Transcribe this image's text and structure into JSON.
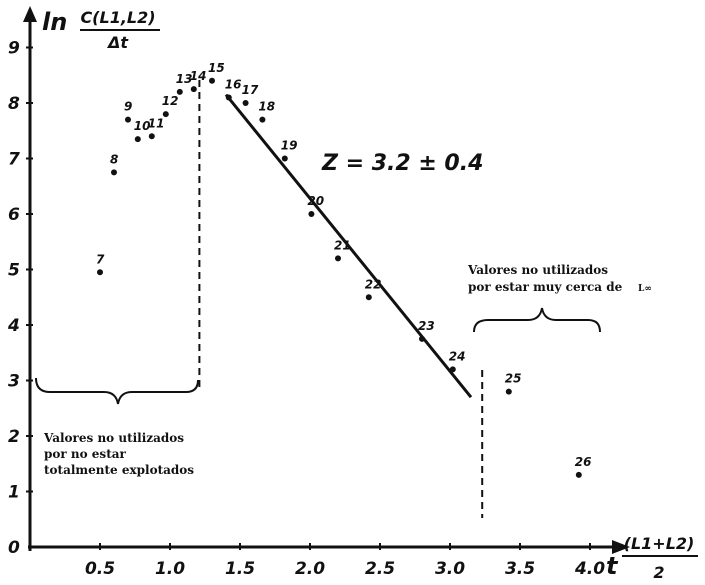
{
  "chart_data": {
    "type": "scatter",
    "title": "",
    "ylabel_prefix": "ln",
    "ylabel_num": "C(L1,L2)",
    "ylabel_den": "Δt",
    "xlabel_prefix": "t",
    "xlabel_num": "(L1+L2)",
    "xlabel_den": "2",
    "xlim": [
      0,
      4.3
    ],
    "ylim": [
      0,
      9.4
    ],
    "xticks": [
      {
        "v": 0.5,
        "label": "0.5"
      },
      {
        "v": 1.0,
        "label": "1.0"
      },
      {
        "v": 1.5,
        "label": "1.5"
      },
      {
        "v": 2.0,
        "label": "2.0"
      },
      {
        "v": 2.5,
        "label": "2.5"
      },
      {
        "v": 3.0,
        "label": "3.0"
      },
      {
        "v": 3.5,
        "label": "3.5"
      },
      {
        "v": 4.0,
        "label": "4.0"
      }
    ],
    "yticks": [
      {
        "v": 0,
        "label": "0"
      },
      {
        "v": 1,
        "label": "1"
      },
      {
        "v": 2,
        "label": "2"
      },
      {
        "v": 3,
        "label": "3"
      },
      {
        "v": 4,
        "label": "4"
      },
      {
        "v": 5,
        "label": "5"
      },
      {
        "v": 6,
        "label": "6"
      },
      {
        "v": 7,
        "label": "7"
      },
      {
        "v": 8,
        "label": "8"
      },
      {
        "v": 9,
        "label": "9"
      }
    ],
    "points": [
      {
        "label": "7",
        "x": 0.5,
        "y": 4.95
      },
      {
        "label": "8",
        "x": 0.6,
        "y": 6.75
      },
      {
        "label": "9",
        "x": 0.7,
        "y": 7.7
      },
      {
        "label": "10",
        "x": 0.77,
        "y": 7.35
      },
      {
        "label": "11",
        "x": 0.87,
        "y": 7.4
      },
      {
        "label": "12",
        "x": 0.97,
        "y": 7.8
      },
      {
        "label": "13",
        "x": 1.07,
        "y": 8.2
      },
      {
        "label": "14",
        "x": 1.17,
        "y": 8.25
      },
      {
        "label": "15",
        "x": 1.3,
        "y": 8.4
      },
      {
        "label": "16",
        "x": 1.42,
        "y": 8.1
      },
      {
        "label": "17",
        "x": 1.54,
        "y": 8.0
      },
      {
        "label": "18",
        "x": 1.66,
        "y": 7.7
      },
      {
        "label": "19",
        "x": 1.82,
        "y": 7.0
      },
      {
        "label": "20",
        "x": 2.01,
        "y": 6.0
      },
      {
        "label": "21",
        "x": 2.2,
        "y": 5.2
      },
      {
        "label": "22",
        "x": 2.42,
        "y": 4.5
      },
      {
        "label": "23",
        "x": 2.8,
        "y": 3.75
      },
      {
        "label": "24",
        "x": 3.02,
        "y": 3.2
      },
      {
        "label": "25",
        "x": 3.42,
        "y": 2.8
      },
      {
        "label": "26",
        "x": 3.92,
        "y": 1.3
      }
    ],
    "fit_line": {
      "x1": 1.4,
      "y1": 8.15,
      "x2": 3.15,
      "y2": 2.7
    },
    "cut_left_x": 1.21,
    "cut_right_x": 3.23,
    "equation": "Z = 3.2 ± 0.4",
    "annotation_left": [
      "Valores no utilizados",
      "por no estar",
      "totalmente explotados"
    ],
    "annotation_right": [
      "Valores no utilizados",
      "por estar muy cerca de"
    ],
    "annotation_right_symbol": "L∞"
  }
}
